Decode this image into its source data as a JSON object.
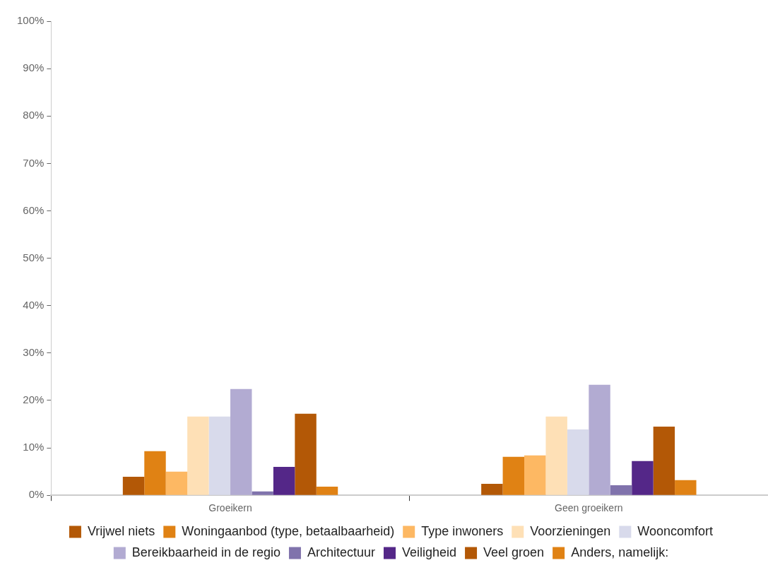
{
  "chart_data": {
    "type": "bar",
    "categories": [
      "Groeikern",
      "Geen groeikern"
    ],
    "series": [
      {
        "name": "Vrijwel niets",
        "color": "#b35806",
        "values": [
          3.9,
          2.4
        ]
      },
      {
        "name": "Woningaanbod (type, betaalbaarheid)",
        "color": "#e08214",
        "values": [
          9.3,
          8.1
        ]
      },
      {
        "name": "Type inwoners",
        "color": "#fdb863",
        "values": [
          5.0,
          8.4
        ]
      },
      {
        "name": "Voorzieningen",
        "color": "#fee0b6",
        "values": [
          16.6,
          16.6
        ]
      },
      {
        "name": "Wooncomfort",
        "color": "#d8daeb",
        "values": [
          16.6,
          13.9
        ]
      },
      {
        "name": "Bereikbaarheid in de regio",
        "color": "#b2abd2",
        "values": [
          22.4,
          23.3
        ]
      },
      {
        "name": "Architectuur",
        "color": "#8073ac",
        "values": [
          0.8,
          2.1
        ]
      },
      {
        "name": "Veiligheid",
        "color": "#542788",
        "values": [
          6.0,
          7.2
        ]
      },
      {
        "name": "Veel groen",
        "color": "#b35806",
        "values": [
          17.2,
          14.5
        ]
      },
      {
        "name": "Anders, namelijk:",
        "color": "#e08214",
        "values": [
          1.8,
          3.2
        ]
      }
    ],
    "ylim": [
      0,
      100
    ],
    "yticks": [
      {
        "value": 0,
        "label": "0%"
      },
      {
        "value": 10,
        "label": "10%"
      },
      {
        "value": 20,
        "label": "20%"
      },
      {
        "value": 30,
        "label": "30%"
      },
      {
        "value": 40,
        "label": "40%"
      },
      {
        "value": 50,
        "label": "50%"
      },
      {
        "value": 60,
        "label": "60%"
      },
      {
        "value": 70,
        "label": "70%"
      },
      {
        "value": 80,
        "label": "80%"
      },
      {
        "value": 90,
        "label": "90%"
      },
      {
        "value": 100,
        "label": "100%"
      }
    ],
    "grid": false,
    "legend": "bottom"
  }
}
